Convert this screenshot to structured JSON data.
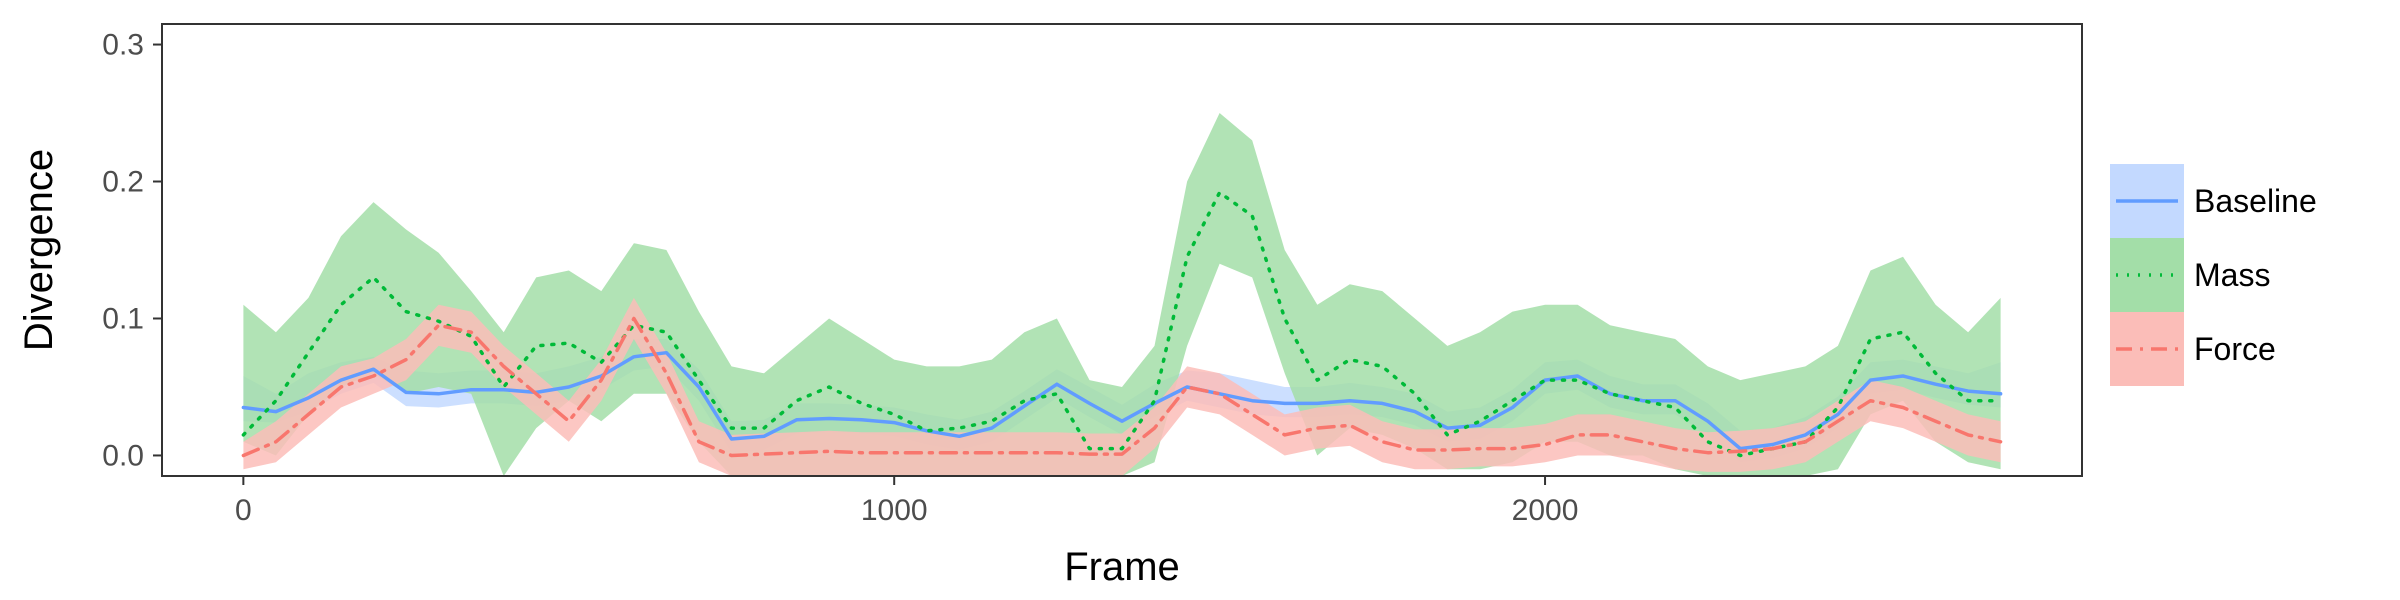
{
  "chart_data": {
    "type": "line",
    "xlabel": "Frame",
    "ylabel": "Divergence",
    "xlim": [
      -125,
      2825
    ],
    "ylim": [
      -0.015,
      0.315
    ],
    "xticks": [
      0,
      1000,
      2000
    ],
    "yticks": [
      0.0,
      0.1,
      0.2,
      0.3
    ],
    "ytick_labels": [
      "0.0",
      "0.1",
      "0.2",
      "0.3"
    ],
    "grid": false,
    "legend_position": "right",
    "x": [
      0,
      50,
      100,
      150,
      200,
      250,
      300,
      350,
      400,
      450,
      500,
      550,
      600,
      650,
      700,
      750,
      800,
      850,
      900,
      950,
      1000,
      1050,
      1100,
      1150,
      1200,
      1250,
      1300,
      1350,
      1400,
      1450,
      1500,
      1550,
      1600,
      1650,
      1700,
      1750,
      1800,
      1850,
      1900,
      1950,
      2000,
      2050,
      2100,
      2150,
      2200,
      2250,
      2300,
      2350,
      2400,
      2450,
      2500,
      2550,
      2600,
      2650,
      2700
    ],
    "series": [
      {
        "name": "Baseline",
        "color": "#619CFF",
        "fill": "#C3D9FF",
        "linestyle": "solid",
        "values": [
          0.035,
          0.032,
          0.042,
          0.055,
          0.063,
          0.046,
          0.045,
          0.048,
          0.048,
          0.046,
          0.05,
          0.058,
          0.072,
          0.075,
          0.05,
          0.012,
          0.014,
          0.026,
          0.027,
          0.026,
          0.024,
          0.018,
          0.014,
          0.02,
          0.036,
          0.052,
          0.038,
          0.025,
          0.038,
          0.05,
          0.045,
          0.04,
          0.038,
          0.038,
          0.04,
          0.038,
          0.032,
          0.02,
          0.022,
          0.035,
          0.055,
          0.058,
          0.045,
          0.04,
          0.04,
          0.025,
          0.005,
          0.008,
          0.015,
          0.03,
          0.055,
          0.058,
          0.052,
          0.047,
          0.045
        ],
        "lower": [
          0.025,
          0.024,
          0.032,
          0.045,
          0.053,
          0.036,
          0.035,
          0.038,
          0.038,
          0.036,
          0.04,
          0.048,
          0.062,
          0.065,
          0.04,
          0.002,
          0.004,
          0.016,
          0.017,
          0.016,
          0.014,
          0.008,
          0.004,
          0.01,
          0.026,
          0.042,
          0.028,
          0.015,
          0.028,
          0.04,
          0.035,
          0.03,
          0.028,
          0.028,
          0.03,
          0.028,
          0.022,
          0.01,
          0.012,
          0.025,
          0.045,
          0.048,
          0.035,
          0.03,
          0.03,
          0.015,
          -0.005,
          -0.002,
          0.005,
          0.02,
          0.045,
          0.048,
          0.042,
          0.037,
          0.035
        ],
        "upper": [
          0.058,
          0.045,
          0.06,
          0.068,
          0.072,
          0.062,
          0.06,
          0.062,
          0.062,
          0.06,
          0.065,
          0.072,
          0.085,
          0.085,
          0.063,
          0.025,
          0.026,
          0.038,
          0.038,
          0.037,
          0.035,
          0.03,
          0.026,
          0.032,
          0.047,
          0.063,
          0.05,
          0.037,
          0.052,
          0.062,
          0.06,
          0.055,
          0.05,
          0.05,
          0.053,
          0.05,
          0.045,
          0.032,
          0.035,
          0.048,
          0.068,
          0.07,
          0.058,
          0.052,
          0.052,
          0.038,
          0.018,
          0.02,
          0.028,
          0.043,
          0.068,
          0.07,
          0.065,
          0.06,
          0.068
        ]
      },
      {
        "name": "Mass",
        "color": "#00BA38",
        "fill": "#A3DEA8",
        "linestyle": "dotted",
        "values": [
          0.015,
          0.04,
          0.075,
          0.11,
          0.13,
          0.105,
          0.098,
          0.087,
          0.05,
          0.08,
          0.082,
          0.068,
          0.095,
          0.09,
          0.055,
          0.02,
          0.02,
          0.04,
          0.05,
          0.038,
          0.03,
          0.018,
          0.02,
          0.025,
          0.04,
          0.045,
          0.005,
          0.005,
          0.04,
          0.145,
          0.192,
          0.175,
          0.1,
          0.055,
          0.07,
          0.065,
          0.045,
          0.015,
          0.025,
          0.04,
          0.055,
          0.055,
          0.045,
          0.04,
          0.035,
          0.01,
          0.0,
          0.005,
          0.01,
          0.035,
          0.085,
          0.09,
          0.06,
          0.04,
          0.04
        ],
        "lower": [
          0.01,
          0.0,
          0.03,
          0.05,
          0.06,
          0.045,
          0.05,
          0.045,
          -0.015,
          0.02,
          0.04,
          0.025,
          0.045,
          0.045,
          0.01,
          -0.015,
          -0.015,
          -0.015,
          -0.015,
          -0.015,
          -0.015,
          -0.015,
          -0.015,
          -0.015,
          -0.015,
          -0.015,
          -0.015,
          -0.015,
          -0.005,
          0.08,
          0.14,
          0.13,
          0.06,
          0.0,
          0.02,
          0.015,
          0.005,
          -0.01,
          -0.01,
          -0.005,
          0.01,
          0.01,
          0.0,
          0.0,
          -0.01,
          -0.015,
          -0.015,
          -0.015,
          -0.015,
          -0.01,
          0.03,
          0.04,
          0.01,
          -0.005,
          -0.01
        ],
        "upper": [
          0.11,
          0.09,
          0.115,
          0.16,
          0.185,
          0.165,
          0.148,
          0.12,
          0.09,
          0.13,
          0.135,
          0.12,
          0.155,
          0.15,
          0.105,
          0.065,
          0.06,
          0.08,
          0.1,
          0.085,
          0.07,
          0.065,
          0.065,
          0.07,
          0.09,
          0.1,
          0.055,
          0.05,
          0.08,
          0.2,
          0.25,
          0.23,
          0.15,
          0.11,
          0.125,
          0.12,
          0.1,
          0.08,
          0.09,
          0.105,
          0.11,
          0.11,
          0.095,
          0.09,
          0.085,
          0.065,
          0.055,
          0.06,
          0.065,
          0.08,
          0.135,
          0.145,
          0.11,
          0.09,
          0.115
        ]
      },
      {
        "name": "Force",
        "color": "#F8766D",
        "fill": "#FBBDB8",
        "linestyle": "dashdot",
        "values": [
          0.0,
          0.01,
          0.03,
          0.05,
          0.058,
          0.07,
          0.095,
          0.09,
          0.065,
          0.045,
          0.025,
          0.055,
          0.1,
          0.06,
          0.01,
          0.0,
          0.001,
          0.002,
          0.003,
          0.002,
          0.002,
          0.002,
          0.002,
          0.002,
          0.002,
          0.002,
          0.001,
          0.001,
          0.02,
          0.05,
          0.045,
          0.03,
          0.015,
          0.02,
          0.022,
          0.01,
          0.004,
          0.004,
          0.005,
          0.005,
          0.008,
          0.015,
          0.015,
          0.01,
          0.005,
          0.002,
          0.003,
          0.005,
          0.01,
          0.025,
          0.04,
          0.035,
          0.025,
          0.015,
          0.01
        ],
        "lower": [
          -0.01,
          -0.005,
          0.015,
          0.035,
          0.045,
          0.055,
          0.08,
          0.075,
          0.05,
          0.03,
          0.01,
          0.04,
          0.085,
          0.045,
          -0.005,
          -0.015,
          -0.015,
          -0.015,
          -0.015,
          -0.015,
          -0.015,
          -0.015,
          -0.015,
          -0.015,
          -0.015,
          -0.015,
          -0.015,
          -0.015,
          0.005,
          0.035,
          0.03,
          0.015,
          0.0,
          0.005,
          0.007,
          -0.005,
          -0.01,
          -0.01,
          -0.008,
          -0.008,
          -0.005,
          0.0,
          0.0,
          -0.005,
          -0.01,
          -0.012,
          -0.012,
          -0.01,
          -0.005,
          0.01,
          0.025,
          0.02,
          0.01,
          0.0,
          -0.005
        ],
        "upper": [
          0.01,
          0.025,
          0.045,
          0.065,
          0.071,
          0.085,
          0.11,
          0.105,
          0.08,
          0.06,
          0.04,
          0.07,
          0.115,
          0.075,
          0.025,
          0.015,
          0.016,
          0.017,
          0.018,
          0.017,
          0.017,
          0.017,
          0.017,
          0.017,
          0.017,
          0.017,
          0.016,
          0.016,
          0.035,
          0.065,
          0.06,
          0.045,
          0.03,
          0.035,
          0.037,
          0.025,
          0.019,
          0.019,
          0.02,
          0.02,
          0.023,
          0.03,
          0.03,
          0.025,
          0.02,
          0.017,
          0.018,
          0.02,
          0.025,
          0.04,
          0.055,
          0.05,
          0.04,
          0.03,
          0.025
        ]
      }
    ]
  }
}
